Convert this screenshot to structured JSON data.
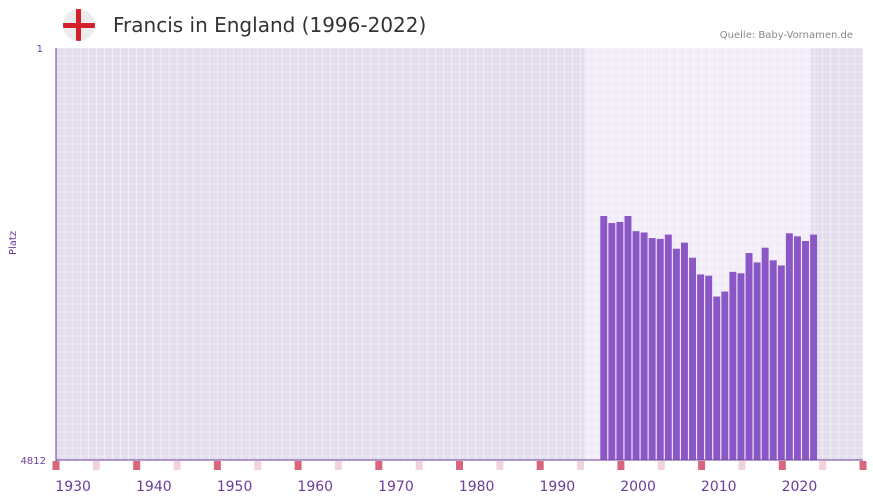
{
  "header": {
    "title": "Francis in England (1996-2022)",
    "source": "Quelle: Baby-Vornamen.de",
    "flag_icon": "england-flag-icon"
  },
  "chart_data": {
    "type": "bar",
    "title": "Francis in England (1996-2022)",
    "ylabel": "Platz",
    "xlabel": "",
    "y_axis": {
      "top_label": "1",
      "bottom_label": "4812",
      "inverted": true,
      "ylim": [
        4812,
        1
      ]
    },
    "x_range": [
      1928,
      2028
    ],
    "highlight_range": [
      1994,
      2021
    ],
    "x_ticks": [
      "1930",
      "1940",
      "1950",
      "1960",
      "1970",
      "1980",
      "1990",
      "2000",
      "2010",
      "2020"
    ],
    "x": [
      1996,
      1997,
      1998,
      1999,
      2000,
      2001,
      2002,
      2003,
      2004,
      2005,
      2006,
      2007,
      2008,
      2009,
      2010,
      2011,
      2012,
      2013,
      2014,
      2015,
      2016,
      2017,
      2018,
      2019,
      2020,
      2021,
      2022
    ],
    "values": [
      1963,
      2045,
      2032,
      1963,
      2140,
      2155,
      2220,
      2230,
      2180,
      2345,
      2274,
      2450,
      2645,
      2660,
      2903,
      2845,
      2615,
      2632,
      2395,
      2505,
      2333,
      2480,
      2540,
      2165,
      2200,
      2255,
      2180
    ],
    "colors": {
      "bar": "#8b57c7",
      "axis": "#6a3d9a",
      "bg": "#e3dded",
      "highlight": "#f1ecf8",
      "marker": "#d9667a"
    }
  }
}
